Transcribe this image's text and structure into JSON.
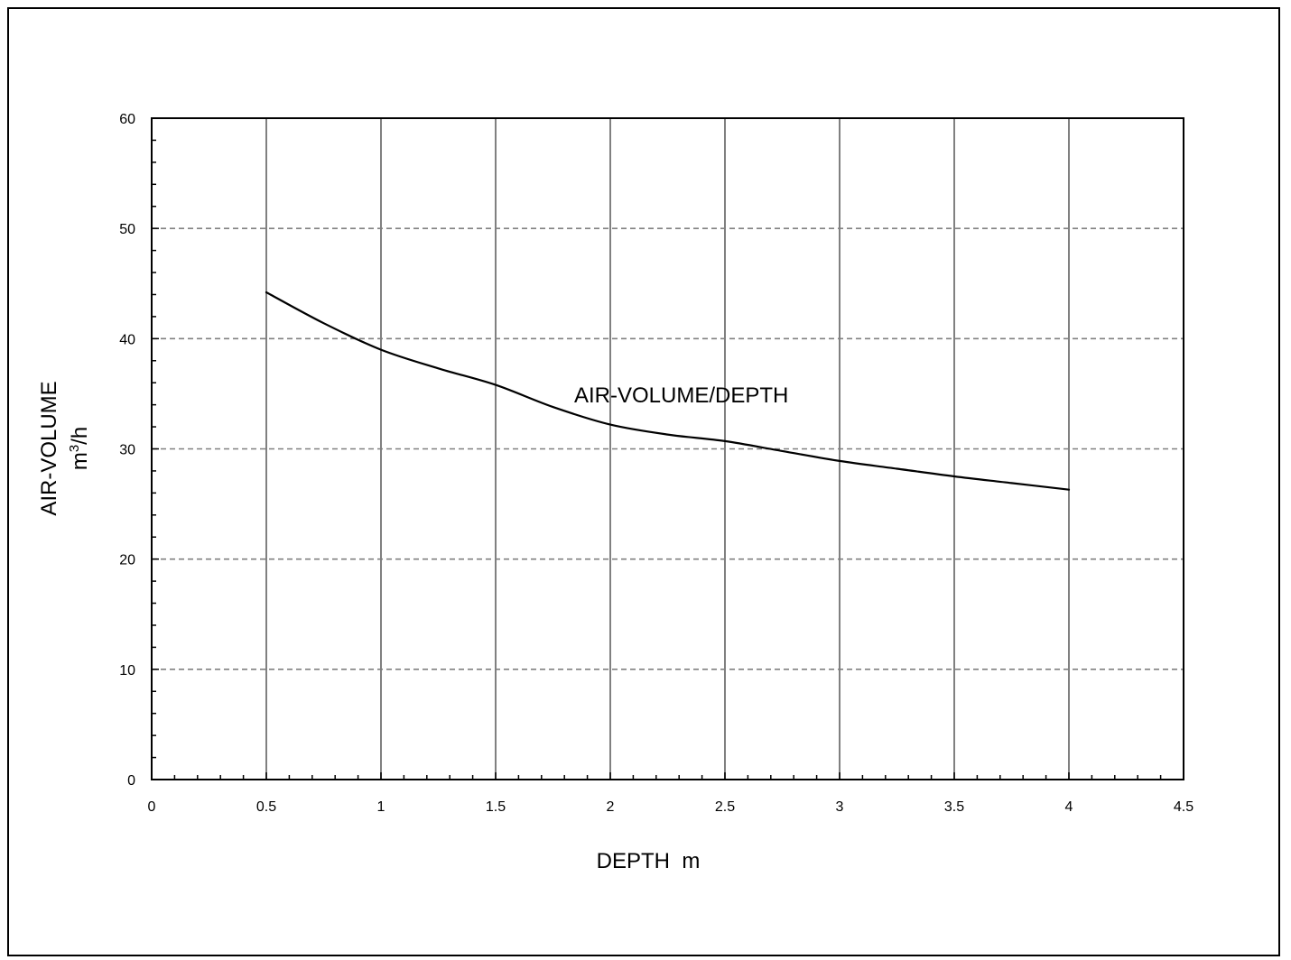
{
  "chart_data": {
    "type": "line",
    "title": "",
    "xlabel": "DEPTH  m",
    "ylabel": "AIR-VOLUME",
    "ylabel_unit_base": "m",
    "ylabel_unit_sup": "3",
    "ylabel_unit_rest": "/h",
    "annotation": "AIR-VOLUME/DEPTH",
    "xlim": [
      0,
      4.5
    ],
    "ylim": [
      0,
      60
    ],
    "x_ticks": [
      "0",
      "0.5",
      "1",
      "1.5",
      "2",
      "2.5",
      "3",
      "3.5",
      "4",
      "4.5"
    ],
    "y_ticks": [
      "0",
      "10",
      "20",
      "30",
      "40",
      "50",
      "60"
    ],
    "grid": {
      "vertical": "solid",
      "horizontal": "dashed"
    },
    "series": [
      {
        "x": [
          0.5,
          0.75,
          1.0,
          1.25,
          1.5,
          1.75,
          2.0,
          2.25,
          2.5,
          2.75,
          3.0,
          3.25,
          3.5,
          3.75,
          4.0
        ],
        "values": [
          44.2,
          41.4,
          39.0,
          37.3,
          35.8,
          33.8,
          32.2,
          31.3,
          30.7,
          29.8,
          28.9,
          28.2,
          27.5,
          26.9,
          26.3
        ]
      }
    ],
    "line_color": "#000000",
    "grid_color": "#808080"
  }
}
